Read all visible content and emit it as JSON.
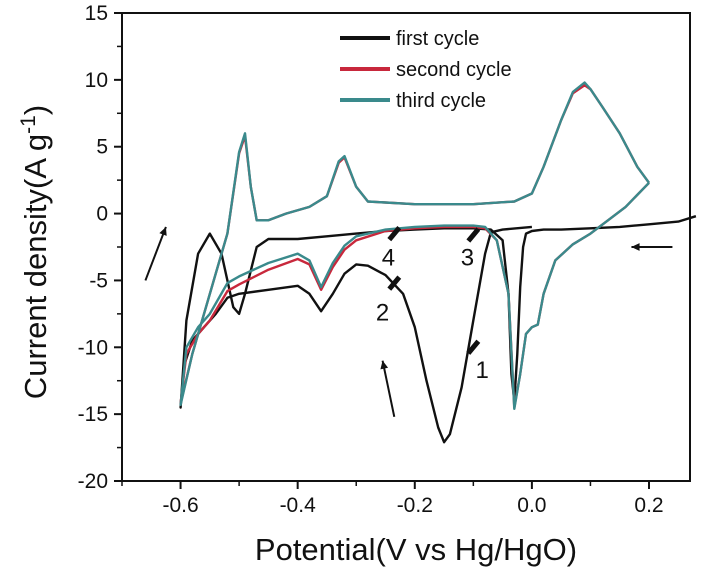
{
  "chart_data": {
    "type": "line",
    "xlabel": "Potential(V vs Hg/HgO)",
    "ylabel_main": "Current density(A g",
    "ylabel_sup": "-1",
    "ylabel_close": ")",
    "xlim": [
      -0.7,
      0.27
    ],
    "ylim": [
      -20,
      15
    ],
    "x_ticks": [
      -0.6,
      -0.4,
      -0.2,
      0.0,
      0.2
    ],
    "x_tick_labels": [
      "-0.6",
      "-0.4",
      "-0.2",
      "0.0",
      "0.2"
    ],
    "y_ticks": [
      -20,
      -15,
      -10,
      -5,
      0,
      5,
      10,
      15
    ],
    "y_tick_labels": [
      "-20",
      "-15",
      "-10",
      "-5",
      "0",
      "5",
      "10",
      "15"
    ],
    "legend_position": "top-center",
    "series": [
      {
        "name": "first cycle",
        "color": "#111111",
        "points": [
          [
            0.28,
            -0.2
          ],
          [
            0.25,
            -0.6
          ],
          [
            0.2,
            -0.8
          ],
          [
            0.15,
            -1.0
          ],
          [
            0.1,
            -1.1
          ],
          [
            0.05,
            -1.2
          ],
          [
            0.02,
            -1.2
          ],
          [
            0.0,
            -1.3
          ],
          [
            -0.01,
            -1.5
          ],
          [
            -0.015,
            -2.5
          ],
          [
            -0.02,
            -5.5
          ],
          [
            -0.025,
            -10.5
          ],
          [
            -0.03,
            -14.0
          ],
          [
            -0.035,
            -12.0
          ],
          [
            -0.04,
            -6.0
          ],
          [
            -0.05,
            -2.0
          ],
          [
            -0.07,
            -1.2
          ],
          [
            -0.1,
            -1.1
          ],
          [
            -0.15,
            -1.1
          ],
          [
            -0.2,
            -1.2
          ],
          [
            -0.25,
            -1.3
          ],
          [
            -0.3,
            -1.5
          ],
          [
            -0.35,
            -1.7
          ],
          [
            -0.4,
            -1.9
          ],
          [
            -0.45,
            -1.9
          ],
          [
            -0.47,
            -2.5
          ],
          [
            -0.49,
            -6.0
          ],
          [
            -0.5,
            -7.5
          ],
          [
            -0.51,
            -7.0
          ],
          [
            -0.53,
            -3.0
          ],
          [
            -0.55,
            -1.5
          ],
          [
            -0.57,
            -3.0
          ],
          [
            -0.59,
            -8.0
          ],
          [
            -0.6,
            -14.5
          ],
          [
            -0.595,
            -11.5
          ],
          [
            -0.58,
            -9.5
          ],
          [
            -0.56,
            -8.5
          ],
          [
            -0.54,
            -7.5
          ],
          [
            -0.52,
            -6.3
          ],
          [
            -0.5,
            -6.0
          ],
          [
            -0.45,
            -5.7
          ],
          [
            -0.4,
            -5.4
          ],
          [
            -0.38,
            -6.0
          ],
          [
            -0.36,
            -7.3
          ],
          [
            -0.34,
            -6.0
          ],
          [
            -0.32,
            -4.5
          ],
          [
            -0.3,
            -3.8
          ],
          [
            -0.28,
            -3.9
          ],
          [
            -0.25,
            -4.6
          ],
          [
            -0.22,
            -6.0
          ],
          [
            -0.2,
            -8.5
          ],
          [
            -0.18,
            -12.5
          ],
          [
            -0.16,
            -16.0
          ],
          [
            -0.15,
            -17.1
          ],
          [
            -0.14,
            -16.5
          ],
          [
            -0.12,
            -13.0
          ],
          [
            -0.1,
            -8.0
          ],
          [
            -0.08,
            -3.0
          ],
          [
            -0.07,
            -1.4
          ],
          [
            -0.05,
            -1.2
          ],
          [
            0.0,
            -1.0
          ]
        ]
      },
      {
        "name": "second cycle",
        "color": "#c8283c",
        "points": [
          [
            0.2,
            2.3
          ],
          [
            0.18,
            3.5
          ],
          [
            0.15,
            6.0
          ],
          [
            0.12,
            8.0
          ],
          [
            0.1,
            9.3
          ],
          [
            0.09,
            9.6
          ],
          [
            0.07,
            9.0
          ],
          [
            0.05,
            7.0
          ],
          [
            0.02,
            3.5
          ],
          [
            0.0,
            1.5
          ],
          [
            -0.03,
            0.9
          ],
          [
            -0.1,
            0.7
          ],
          [
            -0.2,
            0.7
          ],
          [
            -0.28,
            0.9
          ],
          [
            -0.3,
            2.0
          ],
          [
            -0.32,
            4.2
          ],
          [
            -0.33,
            3.8
          ],
          [
            -0.35,
            1.3
          ],
          [
            -0.38,
            0.5
          ],
          [
            -0.42,
            0.0
          ],
          [
            -0.45,
            -0.5
          ],
          [
            -0.47,
            -0.5
          ],
          [
            -0.48,
            2.0
          ],
          [
            -0.49,
            5.8
          ],
          [
            -0.5,
            4.5
          ],
          [
            -0.52,
            -1.5
          ],
          [
            -0.54,
            -4.5
          ],
          [
            -0.56,
            -7.5
          ],
          [
            -0.58,
            -10.5
          ],
          [
            -0.6,
            -14.2
          ],
          [
            -0.59,
            -10.5
          ],
          [
            -0.57,
            -9.0
          ],
          [
            -0.55,
            -8.0
          ],
          [
            -0.52,
            -5.8
          ],
          [
            -0.5,
            -5.3
          ],
          [
            -0.45,
            -4.2
          ],
          [
            -0.4,
            -3.4
          ],
          [
            -0.38,
            -3.8
          ],
          [
            -0.36,
            -5.7
          ],
          [
            -0.34,
            -4.0
          ],
          [
            -0.32,
            -2.7
          ],
          [
            -0.3,
            -2.0
          ],
          [
            -0.25,
            -1.3
          ],
          [
            -0.2,
            -1.1
          ],
          [
            -0.15,
            -1.0
          ],
          [
            -0.1,
            -1.0
          ],
          [
            -0.08,
            -1.1
          ],
          [
            -0.06,
            -2.0
          ],
          [
            -0.04,
            -6.0
          ],
          [
            -0.03,
            -14.5
          ],
          [
            -0.02,
            -12.0
          ],
          [
            -0.01,
            -9.0
          ],
          [
            0.0,
            -8.5
          ],
          [
            0.01,
            -8.3
          ],
          [
            0.02,
            -6.0
          ],
          [
            0.04,
            -3.5
          ],
          [
            0.07,
            -2.3
          ],
          [
            0.1,
            -1.5
          ],
          [
            0.13,
            -0.5
          ],
          [
            0.16,
            0.5
          ],
          [
            0.2,
            2.3
          ]
        ]
      },
      {
        "name": "third cycle",
        "color": "#3a8a8c",
        "points": [
          [
            0.2,
            2.3
          ],
          [
            0.18,
            3.5
          ],
          [
            0.15,
            6.0
          ],
          [
            0.12,
            8.0
          ],
          [
            0.1,
            9.3
          ],
          [
            0.09,
            9.8
          ],
          [
            0.07,
            9.1
          ],
          [
            0.05,
            7.0
          ],
          [
            0.02,
            3.5
          ],
          [
            0.0,
            1.5
          ],
          [
            -0.03,
            0.9
          ],
          [
            -0.1,
            0.7
          ],
          [
            -0.2,
            0.7
          ],
          [
            -0.28,
            0.9
          ],
          [
            -0.3,
            2.0
          ],
          [
            -0.32,
            4.3
          ],
          [
            -0.33,
            3.9
          ],
          [
            -0.35,
            1.3
          ],
          [
            -0.38,
            0.5
          ],
          [
            -0.42,
            0.0
          ],
          [
            -0.45,
            -0.5
          ],
          [
            -0.47,
            -0.5
          ],
          [
            -0.48,
            2.0
          ],
          [
            -0.49,
            6.0
          ],
          [
            -0.5,
            4.6
          ],
          [
            -0.52,
            -1.5
          ],
          [
            -0.54,
            -4.5
          ],
          [
            -0.56,
            -7.5
          ],
          [
            -0.58,
            -10.5
          ],
          [
            -0.6,
            -14.3
          ],
          [
            -0.59,
            -10.0
          ],
          [
            -0.57,
            -8.5
          ],
          [
            -0.55,
            -7.5
          ],
          [
            -0.52,
            -5.2
          ],
          [
            -0.5,
            -4.7
          ],
          [
            -0.45,
            -3.7
          ],
          [
            -0.4,
            -3.0
          ],
          [
            -0.38,
            -3.5
          ],
          [
            -0.36,
            -5.5
          ],
          [
            -0.34,
            -3.7
          ],
          [
            -0.32,
            -2.4
          ],
          [
            -0.3,
            -1.7
          ],
          [
            -0.25,
            -1.2
          ],
          [
            -0.2,
            -1.0
          ],
          [
            -0.15,
            -0.9
          ],
          [
            -0.1,
            -0.9
          ],
          [
            -0.08,
            -1.0
          ],
          [
            -0.06,
            -2.0
          ],
          [
            -0.04,
            -6.0
          ],
          [
            -0.03,
            -14.6
          ],
          [
            -0.02,
            -12.0
          ],
          [
            -0.01,
            -9.0
          ],
          [
            0.0,
            -8.5
          ],
          [
            0.01,
            -8.3
          ],
          [
            0.02,
            -6.0
          ],
          [
            0.04,
            -3.5
          ],
          [
            0.07,
            -2.3
          ],
          [
            0.1,
            -1.5
          ],
          [
            0.13,
            -0.5
          ],
          [
            0.16,
            0.5
          ],
          [
            0.2,
            2.3
          ]
        ]
      }
    ],
    "markers": [
      {
        "label": "1",
        "x": -0.1,
        "y": -10.0,
        "label_x": -0.085,
        "label_y": -12.3
      },
      {
        "label": "2",
        "x": -0.235,
        "y": -5.2,
        "label_x": -0.255,
        "label_y": -8.0
      },
      {
        "label": "3",
        "x": -0.1,
        "y": -1.6,
        "label_x": -0.11,
        "label_y": -3.9
      },
      {
        "label": "4",
        "x": -0.235,
        "y": -1.5,
        "label_x": -0.245,
        "label_y": -3.9
      }
    ],
    "arrows": [
      {
        "x1": 0.24,
        "y1": -2.5,
        "x2": 0.17,
        "y2": -2.5
      },
      {
        "x1": -0.66,
        "y1": -5.0,
        "x2": -0.625,
        "y2": -1.0
      },
      {
        "x1": -0.235,
        "y1": -15.2,
        "x2": -0.255,
        "y2": -11.0
      }
    ]
  }
}
